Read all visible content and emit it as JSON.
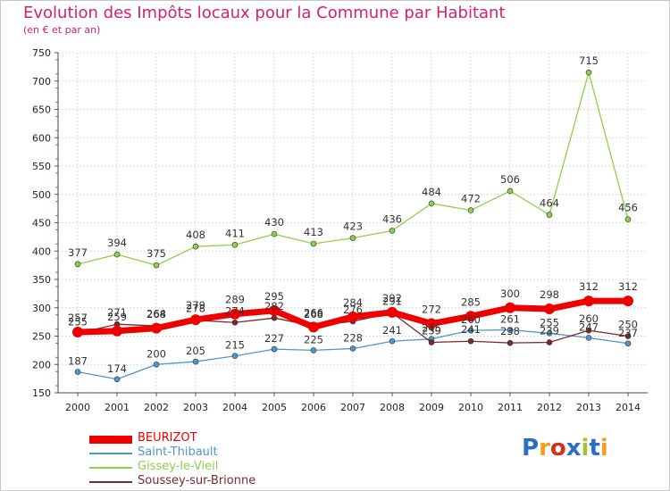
{
  "header": {
    "title": "Evolution des Impôts locaux pour la Commune par Habitant",
    "subtitle": "(en € et par an)"
  },
  "logo": {
    "text": "Proxiti",
    "colors": [
      "#2a6fc2",
      "#f0a020",
      "#d83020",
      "#2a6fc2",
      "#9fc43c",
      "#2a6fc2",
      "#f0a020"
    ]
  },
  "chart_data": {
    "type": "line",
    "x": [
      "2000",
      "2001",
      "2002",
      "2003",
      "2004",
      "2005",
      "2006",
      "2007",
      "2008",
      "2009",
      "2010",
      "2011",
      "2012",
      "2013",
      "2014"
    ],
    "ylim": [
      150,
      750
    ],
    "yticks": [
      150,
      200,
      250,
      300,
      350,
      400,
      450,
      500,
      550,
      600,
      650,
      700,
      750
    ],
    "grid": true,
    "legend_position": "bottom-left",
    "series": [
      {
        "name": "Gissey-le-Vieil",
        "color": "#8ed04a",
        "values": [
          377,
          394,
          375,
          408,
          411,
          430,
          413,
          423,
          436,
          484,
          472,
          506,
          464,
          715,
          456
        ],
        "labels": [
          "377",
          "394",
          "375",
          "408",
          "411",
          "430",
          "413",
          "423",
          "436",
          "484",
          "472",
          "506",
          "464",
          "715",
          "456"
        ]
      },
      {
        "name": "Saint-Thibault",
        "color": "#4d97cc",
        "values": [
          187,
          174,
          200,
          205,
          215,
          227,
          225,
          228,
          241,
          245,
          260,
          261,
          255,
          247,
          237
        ],
        "labels": [
          "187",
          "174",
          "200",
          "205",
          "215",
          "227",
          "225",
          "228",
          "241",
          "245",
          "260",
          "261",
          "255",
          "247",
          "237"
        ]
      },
      {
        "name": "Soussey-sur-Brionne",
        "color": "#7a2a2e",
        "values": [
          255,
          271,
          268,
          278,
          274,
          282,
          268,
          276,
          291,
          239,
          241,
          238,
          239,
          260,
          250
        ],
        "labels": [
          "255",
          "271",
          "268",
          "278",
          "274",
          "282",
          "268",
          "276",
          "291",
          "239",
          "241",
          "238",
          "239",
          "260",
          "250"
        ]
      },
      {
        "name": "BEURIZOT",
        "color": "#ee0000",
        "values": [
          257,
          259,
          264,
          279,
          289,
          295,
          266,
          284,
          292,
          272,
          285,
          300,
          298,
          312,
          312
        ],
        "labels": [
          "257",
          "259",
          "264",
          "279",
          "289",
          "295",
          "266",
          "284",
          "292",
          "272",
          "285",
          "300",
          "298",
          "312",
          "312"
        ]
      }
    ]
  }
}
